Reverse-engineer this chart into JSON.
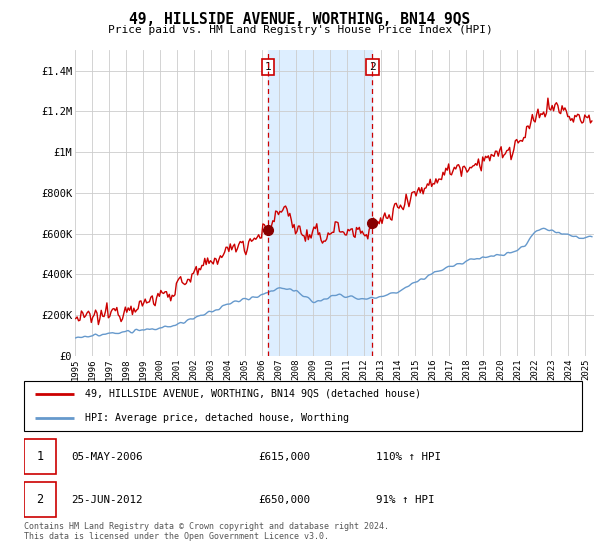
{
  "title": "49, HILLSIDE AVENUE, WORTHING, BN14 9QS",
  "subtitle": "Price paid vs. HM Land Registry's House Price Index (HPI)",
  "legend_line1": "49, HILLSIDE AVENUE, WORTHING, BN14 9QS (detached house)",
  "legend_line2": "HPI: Average price, detached house, Worthing",
  "footnote": "Contains HM Land Registry data © Crown copyright and database right 2024.\nThis data is licensed under the Open Government Licence v3.0.",
  "transaction1_date": "05-MAY-2006",
  "transaction1_price": "£615,000",
  "transaction1_hpi": "110% ↑ HPI",
  "transaction2_date": "25-JUN-2012",
  "transaction2_price": "£650,000",
  "transaction2_hpi": "91% ↑ HPI",
  "red_color": "#cc0000",
  "blue_color": "#6699cc",
  "vline_color": "#cc0000",
  "shaded_color": "#ddeeff",
  "yticks": [
    0,
    200000,
    400000,
    600000,
    800000,
    1000000,
    1200000,
    1400000
  ],
  "ytick_labels": [
    "£0",
    "£200K",
    "£400K",
    "£600K",
    "£800K",
    "£1M",
    "£1.2M",
    "£1.4M"
  ],
  "xlim_start": 1995.0,
  "xlim_end": 2025.5,
  "ylim_min": 0,
  "ylim_max": 1500000,
  "vline1_x": 2006.35,
  "vline2_x": 2012.48,
  "marker1_x": 2006.35,
  "marker1_y": 615000,
  "marker2_x": 2012.48,
  "marker2_y": 650000
}
